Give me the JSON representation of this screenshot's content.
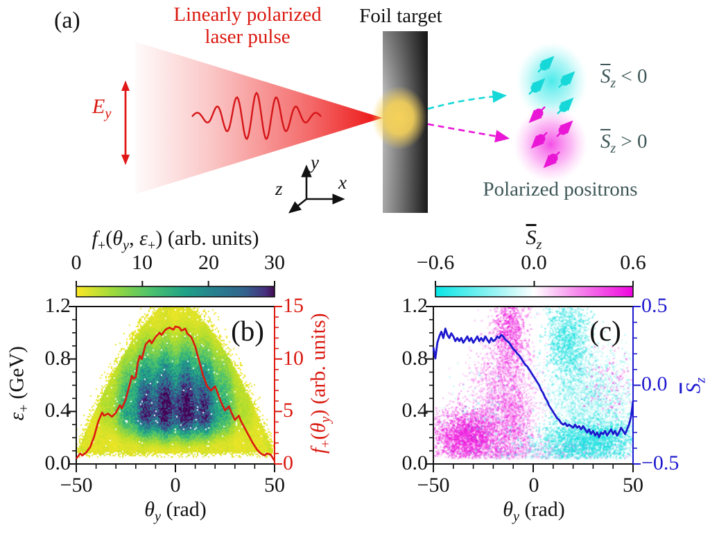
{
  "figure_labels": {
    "a": "(a)",
    "b": "(b)",
    "c": "(c)"
  },
  "panel_a": {
    "laser_title_line1": "Linearly polarized",
    "laser_title_line2": "laser pulse",
    "foil_label": "Foil target",
    "ey_label_parts": [
      {
        "t": "i",
        "v": "E"
      },
      {
        "t": "isub",
        "v": "y"
      }
    ],
    "axis_triad": {
      "x": "x",
      "y": "y",
      "z": "z"
    },
    "sz_negative_parts": [
      {
        "t": "ov",
        "v": "S"
      },
      {
        "t": "isub",
        "v": "z"
      },
      {
        "t": "n",
        "v": " < 0"
      }
    ],
    "sz_positive_parts": [
      {
        "t": "ov",
        "v": "S"
      },
      {
        "t": "isub",
        "v": "z"
      },
      {
        "t": "n",
        "v": " > 0"
      }
    ],
    "positrons_label": "Polarized positrons",
    "colors": {
      "laser_red": "#e41c1c",
      "glow": "#f6d25a",
      "cyan": "#17d8d8",
      "magenta": "#e916d6",
      "annotation": "#3e5656"
    },
    "wave": {
      "cycles": 6.5,
      "amp": 34,
      "base_amp": 5
    },
    "spin_particles": {
      "cyan": [
        [
          785,
          95,
          "ne"
        ],
        [
          815,
          117,
          "ne"
        ],
        [
          772,
          127,
          "ne"
        ],
        [
          813,
          155,
          "ne"
        ]
      ],
      "magenta": [
        [
          777,
          163,
          "sw"
        ],
        [
          812,
          188,
          "ne"
        ],
        [
          780,
          200,
          "sw"
        ],
        [
          798,
          228,
          "sw"
        ]
      ]
    }
  },
  "chart_data": [
    {
      "type": "heatmap+line",
      "panel": "b",
      "colorbar_title_parts": [
        {
          "t": "i",
          "v": "f"
        },
        {
          "t": "sub",
          "v": "+"
        },
        {
          "t": "n",
          "v": "("
        },
        {
          "t": "i",
          "v": "θ"
        },
        {
          "t": "isub",
          "v": "y"
        },
        {
          "t": "n",
          "v": ", "
        },
        {
          "t": "i",
          "v": "ε"
        },
        {
          "t": "sub",
          "v": "+"
        },
        {
          "t": "n",
          "v": ") (arb. units)"
        }
      ],
      "colorbar_tick_labels": [
        "0",
        "10",
        "20",
        "30"
      ],
      "colorbar_values": [
        0,
        10,
        20,
        30
      ],
      "colorbar_range": [
        0,
        30
      ],
      "colormap": "viridis reversed (yellow low, dark purple high)",
      "xlabel_parts": [
        {
          "t": "i",
          "v": "θ"
        },
        {
          "t": "isub",
          "v": "y"
        },
        {
          "t": "n",
          "v": " (rad)"
        }
      ],
      "xlim": [
        -50,
        50
      ],
      "xticks": [
        -50,
        0,
        50
      ],
      "xtick_labels": [
        "−50",
        "0",
        "50"
      ],
      "x_minor_step": 10,
      "ylabel_parts": [
        {
          "t": "i",
          "v": "ε"
        },
        {
          "t": "sub",
          "v": "+"
        },
        {
          "t": "n",
          "v": " (GeV)"
        }
      ],
      "ylim": [
        0,
        1.2
      ],
      "yticks": [
        1.2,
        0.8,
        0.4,
        0.0
      ],
      "ytick_labels": [
        "1.2",
        "0.8",
        "0.4",
        "0.0"
      ],
      "y_minor_step": 0.1,
      "right_label_parts": [
        {
          "t": "i",
          "v": "f"
        },
        {
          "t": "sub",
          "v": "+"
        },
        {
          "t": "n",
          "v": "("
        },
        {
          "t": "i",
          "v": "θ"
        },
        {
          "t": "isub",
          "v": "y"
        },
        {
          "t": "n",
          "v": ") (arb. units)"
        }
      ],
      "right_lim": [
        0,
        15
      ],
      "right_ticks": [
        15,
        10,
        5,
        0
      ],
      "right_tick_labels": [
        "15",
        "10",
        "5",
        "0"
      ],
      "right_minor_step": 1,
      "right_color": "#dc180f",
      "line": {
        "name": "f+(theta_y)",
        "color": "#dc180f",
        "points": [
          [
            -50,
            0.5
          ],
          [
            -48,
            1.0
          ],
          [
            -47,
            0.8
          ],
          [
            -45,
            1.1
          ],
          [
            -43,
            1.6
          ],
          [
            -41,
            2.6
          ],
          [
            -39,
            4.0
          ],
          [
            -37,
            4.9
          ],
          [
            -36,
            4.6
          ],
          [
            -34,
            4.8
          ],
          [
            -32,
            4.5
          ],
          [
            -30,
            4.9
          ],
          [
            -28,
            5.6
          ],
          [
            -27,
            5.3
          ],
          [
            -25,
            6.2
          ],
          [
            -23,
            7.6
          ],
          [
            -22,
            8.4
          ],
          [
            -21,
            8.1
          ],
          [
            -20,
            8.3
          ],
          [
            -19,
            9.6
          ],
          [
            -18,
            10.3
          ],
          [
            -17,
            10.0
          ],
          [
            -15,
            11.4
          ],
          [
            -13,
            11.8
          ],
          [
            -12,
            11.5
          ],
          [
            -10,
            12.1
          ],
          [
            -8,
            12.5
          ],
          [
            -7,
            12.3
          ],
          [
            -5,
            12.8
          ],
          [
            -3,
            13.0
          ],
          [
            -1,
            12.8
          ],
          [
            0,
            13.1
          ],
          [
            2,
            13.0
          ],
          [
            3,
            12.7
          ],
          [
            5,
            12.9
          ],
          [
            6,
            12.4
          ],
          [
            8,
            12.1
          ],
          [
            10,
            11.2
          ],
          [
            12,
            9.8
          ],
          [
            14,
            8.4
          ],
          [
            16,
            7.4
          ],
          [
            18,
            7.0
          ],
          [
            20,
            7.4
          ],
          [
            21,
            6.9
          ],
          [
            23,
            5.9
          ],
          [
            25,
            5.1
          ],
          [
            27,
            5.5
          ],
          [
            28,
            5.0
          ],
          [
            30,
            4.2
          ],
          [
            32,
            4.6
          ],
          [
            33,
            4.1
          ],
          [
            35,
            3.4
          ],
          [
            37,
            2.7
          ],
          [
            39,
            2.0
          ],
          [
            41,
            1.4
          ],
          [
            43,
            1.0
          ],
          [
            45,
            0.8
          ],
          [
            46,
            1.0
          ],
          [
            48,
            0.9
          ],
          [
            50,
            0.3
          ]
        ]
      },
      "heatmap_model": {
        "dome_eps_top": 1.25,
        "dome_theta_max": 52,
        "dome_exponent": 1.6,
        "peak_value": 30,
        "theta_sigma": 24,
        "eps_center": 0.38,
        "eps_sigma_low": 0.16,
        "eps_sigma_high": 0.42
      }
    },
    {
      "type": "scatter+line",
      "panel": "c",
      "colorbar_title_parts": [
        {
          "t": "ov",
          "v": "S"
        },
        {
          "t": "isub",
          "v": "z"
        }
      ],
      "colorbar_tick_labels": [
        "−0.6",
        "0.0",
        "0.6"
      ],
      "colorbar_values": [
        -0.6,
        0.0,
        0.6
      ],
      "colorbar_range": [
        -0.6,
        0.6
      ],
      "colormap": "cyan-white-magenta",
      "xlabel_parts": [
        {
          "t": "i",
          "v": "θ"
        },
        {
          "t": "isub",
          "v": "y"
        },
        {
          "t": "n",
          "v": " (rad)"
        }
      ],
      "xlim": [
        -50,
        50
      ],
      "xticks": [
        -50,
        0,
        50
      ],
      "xtick_labels": [
        "−50",
        "0",
        "50"
      ],
      "x_minor_step": 10,
      "ylim": [
        0,
        1.2
      ],
      "yticks": [
        1.2,
        0.8,
        0.4,
        0.0
      ],
      "ytick_labels": [
        "1.2",
        "0.8",
        "0.4",
        "0.0"
      ],
      "y_minor_step": 0.1,
      "right_label_parts": [
        {
          "t": "ov",
          "v": "S"
        },
        {
          "t": "isub",
          "v": "z"
        }
      ],
      "right_lim": [
        -0.5,
        0.5
      ],
      "right_ticks": [
        0.5,
        0.0,
        -0.5
      ],
      "right_tick_labels": [
        "0.5",
        "0.0",
        "−0.5"
      ],
      "right_minor_step": 0.1,
      "right_color": "#1d18cf",
      "line": {
        "name": "mean Sz",
        "color": "#1d18cf",
        "points": [
          [
            -50,
            0.24
          ],
          [
            -49,
            0.17
          ],
          [
            -48,
            0.27
          ],
          [
            -47,
            0.31
          ],
          [
            -46,
            0.34
          ],
          [
            -45,
            0.3
          ],
          [
            -44,
            0.36
          ],
          [
            -43,
            0.32
          ],
          [
            -42,
            0.3
          ],
          [
            -41,
            0.33
          ],
          [
            -40,
            0.31
          ],
          [
            -39,
            0.28
          ],
          [
            -38,
            0.3
          ],
          [
            -37,
            0.28
          ],
          [
            -36,
            0.3
          ],
          [
            -35,
            0.27
          ],
          [
            -34,
            0.29
          ],
          [
            -33,
            0.31
          ],
          [
            -32,
            0.28
          ],
          [
            -31,
            0.3
          ],
          [
            -30,
            0.27
          ],
          [
            -29,
            0.29
          ],
          [
            -28,
            0.31
          ],
          [
            -27,
            0.28
          ],
          [
            -26,
            0.3
          ],
          [
            -25,
            0.28
          ],
          [
            -24,
            0.31
          ],
          [
            -23,
            0.29
          ],
          [
            -22,
            0.27
          ],
          [
            -21,
            0.3
          ],
          [
            -20,
            0.28
          ],
          [
            -19,
            0.29
          ],
          [
            -18,
            0.31
          ],
          [
            -17,
            0.3
          ],
          [
            -16,
            0.32
          ],
          [
            -15,
            0.31
          ],
          [
            -14,
            0.29
          ],
          [
            -13,
            0.28
          ],
          [
            -12,
            0.27
          ],
          [
            -11,
            0.25
          ],
          [
            -10,
            0.23
          ],
          [
            -9,
            0.22
          ],
          [
            -8,
            0.2
          ],
          [
            -7,
            0.19
          ],
          [
            -6,
            0.17
          ],
          [
            -5,
            0.15
          ],
          [
            -4,
            0.13
          ],
          [
            -3,
            0.12
          ],
          [
            -2,
            0.1
          ],
          [
            -1,
            0.08
          ],
          [
            0,
            0.06
          ],
          [
            1,
            0.04
          ],
          [
            2,
            0.02
          ],
          [
            3,
            0.0
          ],
          [
            4,
            -0.03
          ],
          [
            5,
            -0.05
          ],
          [
            6,
            -0.08
          ],
          [
            7,
            -0.1
          ],
          [
            8,
            -0.13
          ],
          [
            9,
            -0.15
          ],
          [
            10,
            -0.17
          ],
          [
            11,
            -0.19
          ],
          [
            12,
            -0.21
          ],
          [
            13,
            -0.22
          ],
          [
            14,
            -0.24
          ],
          [
            15,
            -0.25
          ],
          [
            16,
            -0.24
          ],
          [
            17,
            -0.26
          ],
          [
            18,
            -0.25
          ],
          [
            19,
            -0.26
          ],
          [
            20,
            -0.27
          ],
          [
            21,
            -0.25
          ],
          [
            22,
            -0.27
          ],
          [
            23,
            -0.26
          ],
          [
            24,
            -0.28
          ],
          [
            25,
            -0.26
          ],
          [
            26,
            -0.28
          ],
          [
            27,
            -0.3
          ],
          [
            28,
            -0.28
          ],
          [
            29,
            -0.31
          ],
          [
            30,
            -0.29
          ],
          [
            31,
            -0.32
          ],
          [
            32,
            -0.3
          ],
          [
            33,
            -0.33
          ],
          [
            34,
            -0.3
          ],
          [
            35,
            -0.31
          ],
          [
            36,
            -0.29
          ],
          [
            37,
            -0.32
          ],
          [
            38,
            -0.3
          ],
          [
            39,
            -0.28
          ],
          [
            40,
            -0.31
          ],
          [
            41,
            -0.29
          ],
          [
            42,
            -0.32
          ],
          [
            43,
            -0.3
          ],
          [
            44,
            -0.27
          ],
          [
            45,
            -0.29
          ],
          [
            46,
            -0.31
          ],
          [
            47,
            -0.28
          ],
          [
            48,
            -0.25
          ],
          [
            49,
            -0.2
          ],
          [
            50,
            -0.1
          ]
        ]
      },
      "scatter_model": {
        "magenta_color": "#ec13dc",
        "cyan_color": "#10dede",
        "magenta_clusters": [
          {
            "t": -33,
            "ts": 9,
            "e": 0.22,
            "es": 0.11,
            "n": 2800,
            "a": 0.5
          },
          {
            "t": -12,
            "ts": 4.5,
            "e": 1.02,
            "es": 0.16,
            "n": 1000,
            "a": 0.5
          },
          {
            "t": -15,
            "ts": 8,
            "e": 0.55,
            "es": 0.22,
            "n": 2000,
            "a": 0.28
          },
          {
            "t": -10,
            "ts": 5,
            "e": 0.3,
            "es": 0.15,
            "n": 800,
            "a": 0.35
          },
          {
            "t": 38,
            "ts": 6,
            "e": 0.63,
            "es": 0.13,
            "n": 130,
            "a": 0.5
          },
          {
            "t": -5,
            "ts": 25,
            "e": 0.1,
            "es": 0.05,
            "n": 600,
            "a": 0.3
          }
        ],
        "cyan_clusters": [
          {
            "t": 17,
            "ts": 5.5,
            "e": 0.95,
            "es": 0.18,
            "n": 1400,
            "a": 0.5
          },
          {
            "t": 28,
            "ts": 13,
            "e": 0.18,
            "es": 0.09,
            "n": 2600,
            "a": 0.5
          },
          {
            "t": 33,
            "ts": 10,
            "e": 0.5,
            "es": 0.17,
            "n": 1400,
            "a": 0.26
          },
          {
            "t": 20,
            "ts": 8,
            "e": 0.55,
            "es": 0.25,
            "n": 900,
            "a": 0.22
          },
          {
            "t": -25,
            "ts": 12,
            "e": 0.35,
            "es": 0.18,
            "n": 160,
            "a": 0.35
          },
          {
            "t": 15,
            "ts": 25,
            "e": 0.09,
            "es": 0.05,
            "n": 500,
            "a": 0.3
          }
        ]
      }
    }
  ]
}
